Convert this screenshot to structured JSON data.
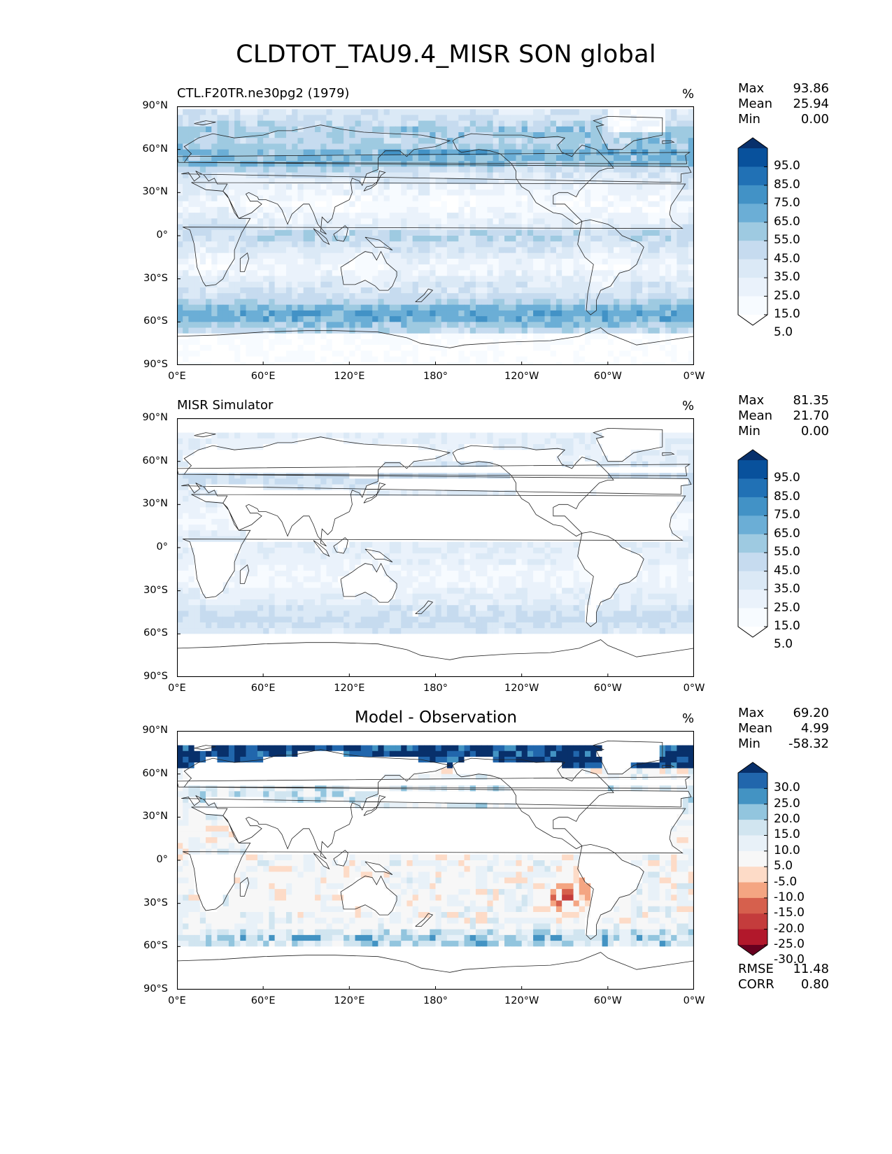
{
  "figure": {
    "title": "CLDTOT_TAU9.4_MISR SON global"
  },
  "axes": {
    "y_ticks": [
      "90°N",
      "60°N",
      "30°N",
      "0°",
      "30°S",
      "60°S",
      "90°S"
    ],
    "x_ticks": [
      "0°E",
      "60°E",
      "120°E",
      "180°",
      "120°W",
      "60°W",
      "0°W"
    ]
  },
  "panels": [
    {
      "title": "CTL.F20TR.ne30pg2 (1979)",
      "title_style": "left",
      "units": "%",
      "stats": [
        {
          "label": "Max",
          "value": "93.86"
        },
        {
          "label": "Mean",
          "value": "25.94"
        },
        {
          "label": "Min",
          "value": "0.00"
        }
      ],
      "colorbar": {
        "labels": [
          "95.0",
          "85.0",
          "75.0",
          "65.0",
          "55.0",
          "45.0",
          "35.0",
          "25.0",
          "15.0",
          "5.0"
        ],
        "colors": [
          "#08306b",
          "#08519c",
          "#2171b5",
          "#4292c6",
          "#6baed6",
          "#9ecae1",
          "#c6dbef",
          "#dbe9f6",
          "#eaf2fb",
          "#f7fbff",
          "#ffffff"
        ]
      },
      "field": "model"
    },
    {
      "title": "MISR Simulator",
      "title_style": "left",
      "units": "%",
      "stats": [
        {
          "label": "Max",
          "value": "81.35"
        },
        {
          "label": "Mean",
          "value": "21.70"
        },
        {
          "label": "Min",
          "value": "0.00"
        }
      ],
      "colorbar": {
        "labels": [
          "95.0",
          "85.0",
          "75.0",
          "65.0",
          "55.0",
          "45.0",
          "35.0",
          "25.0",
          "15.0",
          "5.0"
        ],
        "colors": [
          "#08306b",
          "#08519c",
          "#2171b5",
          "#4292c6",
          "#6baed6",
          "#9ecae1",
          "#c6dbef",
          "#dbe9f6",
          "#eaf2fb",
          "#f7fbff",
          "#ffffff"
        ]
      },
      "field": "obs"
    },
    {
      "title": "Model - Observation",
      "title_style": "center",
      "units": "%",
      "stats": [
        {
          "label": "Max",
          "value": "69.20"
        },
        {
          "label": "Mean",
          "value": "4.99"
        },
        {
          "label": "Min",
          "value": "-58.32"
        }
      ],
      "extra_stats": [
        {
          "label": "RMSE",
          "value": "11.48"
        },
        {
          "label": "CORR",
          "value": "0.80"
        }
      ],
      "colorbar": {
        "labels": [
          "30.0",
          "25.0",
          "20.0",
          "15.0",
          "10.0",
          "5.0",
          "-5.0",
          "-10.0",
          "-15.0",
          "-20.0",
          "-25.0",
          "-30.0"
        ],
        "colors": [
          "#08306b",
          "#2166ac",
          "#4393c3",
          "#92c5de",
          "#d1e5f0",
          "#e8f1f8",
          "#f7f7f7",
          "#fddbc7",
          "#f4a582",
          "#d6604d",
          "#c43c3c",
          "#b2182b",
          "#67001f"
        ]
      },
      "field": "diff"
    }
  ]
}
